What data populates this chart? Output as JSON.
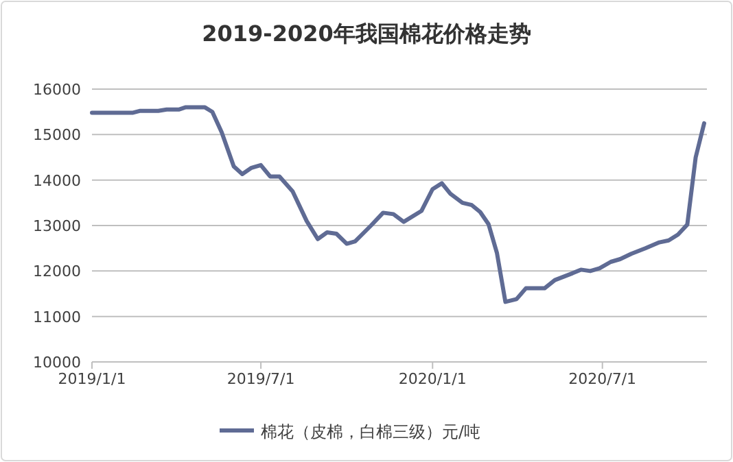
{
  "chart_data": {
    "type": "line",
    "title": "2019-2020年我国棉花价格走势",
    "x": [
      "2019-01-01",
      "2019-02-14",
      "2019-02-21",
      "2019-03-13",
      "2019-03-22",
      "2019-04-04",
      "2019-04-11",
      "2019-05-02",
      "2019-05-10",
      "2019-05-20",
      "2019-06-02",
      "2019-06-11",
      "2019-06-21",
      "2019-07-01",
      "2019-07-11",
      "2019-07-21",
      "2019-08-04",
      "2019-08-19",
      "2019-08-31",
      "2019-09-10",
      "2019-09-20",
      "2019-10-01",
      "2019-10-10",
      "2019-10-27",
      "2019-11-09",
      "2019-11-20",
      "2019-12-01",
      "2019-12-20",
      "2020-01-01",
      "2020-01-11",
      "2020-01-20",
      "2020-02-02",
      "2020-02-12",
      "2020-02-21",
      "2020-03-01",
      "2020-03-10",
      "2020-03-19",
      "2020-03-31",
      "2020-04-10",
      "2020-04-30",
      "2020-05-11",
      "2020-05-30",
      "2020-06-08",
      "2020-06-18",
      "2020-06-28",
      "2020-07-10",
      "2020-07-20",
      "2020-08-01",
      "2020-08-16",
      "2020-08-31",
      "2020-09-10",
      "2020-09-20",
      "2020-09-30",
      "2020-10-09",
      "2020-10-18"
    ],
    "series": [
      {
        "name": "棉花（皮棉，白棉三级）元/吨",
        "color": "#5f6b94",
        "values": [
          15480,
          15480,
          15520,
          15520,
          15550,
          15550,
          15600,
          15600,
          15500,
          15050,
          14300,
          14130,
          14270,
          14330,
          14080,
          14080,
          13750,
          13100,
          12700,
          12850,
          12820,
          12600,
          12650,
          13000,
          13280,
          13250,
          13080,
          13320,
          13800,
          13930,
          13700,
          13500,
          13450,
          13300,
          13030,
          12400,
          11320,
          11380,
          11620,
          11620,
          11800,
          11950,
          12030,
          12000,
          12060,
          12200,
          12260,
          12380,
          12500,
          12630,
          12670,
          12800,
          13020,
          14500,
          15250
        ]
      }
    ],
    "xlim": [
      "2019-01-01",
      "2020-10-21"
    ],
    "xticks": [
      {
        "value": "2019-01-01",
        "label": "2019/1/1"
      },
      {
        "value": "2019-07-01",
        "label": "2019/7/1"
      },
      {
        "value": "2020-01-01",
        "label": "2020/1/1"
      },
      {
        "value": "2020-07-01",
        "label": "2020/7/1"
      }
    ],
    "ylim": [
      10000,
      16000
    ],
    "yticks": [
      10000,
      11000,
      12000,
      13000,
      14000,
      15000,
      16000
    ],
    "grid": "y",
    "legend": "bottom",
    "marker": "none",
    "line_style": "solid"
  }
}
